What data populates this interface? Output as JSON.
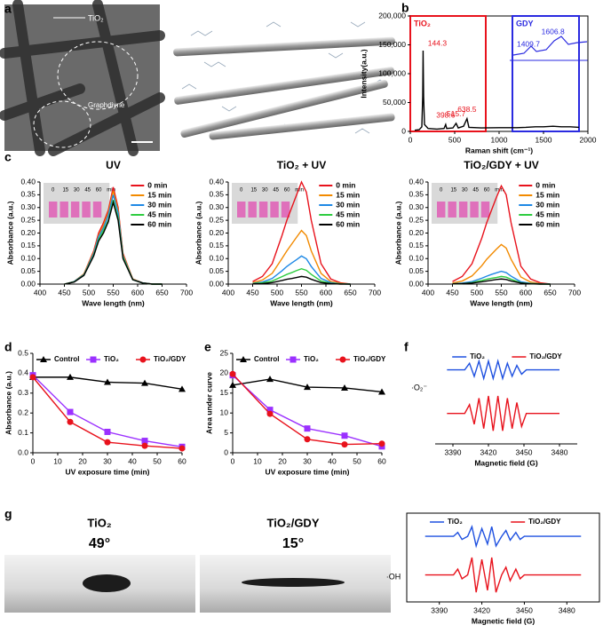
{
  "panel_labels": [
    "a",
    "b",
    "c",
    "d",
    "e",
    "f",
    "g"
  ],
  "figure_a": {
    "labels": [
      "TiO₂",
      "Graphdiyne"
    ]
  },
  "figure_g": {
    "samples": [
      {
        "name": "TiO₂",
        "angle": "49°"
      },
      {
        "name": "TiO₂/GDY",
        "angle": "15°"
      }
    ]
  },
  "chart_data": [
    {
      "type": "line",
      "xlabel": "Raman shift (cm⁻¹)",
      "ylabel": "Intensity(a.u.)",
      "x": [
        50,
        100,
        130,
        140,
        144.3,
        150,
        160,
        200,
        300,
        380,
        398.6,
        410,
        480,
        515.7,
        540,
        600,
        638.5,
        660,
        800,
        1000,
        1200,
        1300,
        1409.7,
        1500,
        1606.8,
        1700,
        1800,
        1900
      ],
      "series": [
        {
          "color": "#000000",
          "values": [
            2000,
            3000,
            8000,
            60000,
            140000,
            60000,
            12000,
            5000,
            4000,
            5000,
            12000,
            5000,
            6000,
            14000,
            6000,
            9000,
            22000,
            7000,
            6000,
            6500,
            6500,
            7000,
            8000,
            8000,
            9000,
            8000,
            8000,
            7000
          ]
        }
      ],
      "xlim": [
        0,
        2000
      ],
      "xticks": [
        0,
        500,
        1000,
        1500,
        2000
      ],
      "ylim": [
        0,
        200000
      ],
      "yticks": [
        0,
        {
          "value": 50000,
          "label": "50,000"
        },
        {
          "value": 100000,
          "label": "100,000"
        },
        {
          "value": 150000,
          "label": "150,000"
        },
        {
          "value": 200000,
          "label": "200,000"
        }
      ],
      "regions": [
        {
          "label": "TiO₂",
          "color": "#e8121c",
          "x": [
            0,
            850
          ]
        },
        {
          "label": "GDY",
          "color": "#2a2ae0",
          "x": [
            1150,
            1900
          ]
        }
      ],
      "peaks": [
        {
          "value": 144.3,
          "label": "144.3"
        },
        {
          "value": 398.6,
          "label": "398.6"
        },
        {
          "value": 515.7,
          "label": "515.7"
        },
        {
          "value": 638.5,
          "label": "638.5"
        },
        {
          "value": 1409.7,
          "label": "1409.7"
        },
        {
          "value": 1606.8,
          "label": "1606.8"
        }
      ]
    },
    {
      "type": "line",
      "title": "UV",
      "xlabel": "Wave length (nm)",
      "ylabel": "Absorbance (a.u.)",
      "legend": "right",
      "inset_labels": [
        "0",
        "15",
        "30",
        "45",
        "60",
        "min"
      ],
      "x": [
        450,
        470,
        490,
        510,
        520,
        530,
        540,
        550,
        560,
        570,
        590,
        610,
        630,
        650
      ],
      "series": [
        {
          "name": "0 min",
          "color": "#e8121c",
          "values": [
            0,
            0.01,
            0.04,
            0.13,
            0.2,
            0.24,
            0.29,
            0.38,
            0.3,
            0.12,
            0.02,
            0.005,
            0,
            0
          ]
        },
        {
          "name": "15 min",
          "color": "#f28a00",
          "values": [
            0,
            0.01,
            0.04,
            0.125,
            0.19,
            0.23,
            0.28,
            0.365,
            0.29,
            0.115,
            0.02,
            0.005,
            0,
            0
          ]
        },
        {
          "name": "30 min",
          "color": "#1e88e5",
          "values": [
            0,
            0.01,
            0.037,
            0.12,
            0.185,
            0.22,
            0.27,
            0.35,
            0.28,
            0.11,
            0.018,
            0.005,
            0,
            0
          ]
        },
        {
          "name": "45 min",
          "color": "#2ecc40",
          "values": [
            0,
            0.009,
            0.035,
            0.113,
            0.174,
            0.21,
            0.25,
            0.33,
            0.26,
            0.105,
            0.017,
            0.004,
            0,
            0
          ]
        },
        {
          "name": "60 min",
          "color": "#000000",
          "values": [
            0,
            0.008,
            0.034,
            0.11,
            0.168,
            0.2,
            0.245,
            0.32,
            0.25,
            0.1,
            0.017,
            0.004,
            0,
            0
          ]
        }
      ],
      "xlim": [
        400,
        700
      ],
      "xticks": [
        400,
        450,
        500,
        550,
        600,
        650,
        700
      ],
      "ylim": [
        0,
        0.4
      ],
      "yticks": [
        {
          "value": 0,
          "label": "0.00"
        },
        0.05,
        {
          "value": 0.1,
          "label": "0.10"
        },
        0.15,
        {
          "value": 0.2,
          "label": "0.20"
        },
        0.25,
        {
          "value": 0.3,
          "label": "0.30"
        },
        0.35,
        {
          "value": 0.4,
          "label": "0.40"
        }
      ]
    },
    {
      "type": "line",
      "title": "TiO₂ + UV",
      "xlabel": "Wave length (nm)",
      "ylabel": "Absorbance (a.u.)",
      "legend": "right",
      "inset_labels": [
        "0",
        "15",
        "30",
        "45",
        "60",
        "min"
      ],
      "x": [
        450,
        470,
        490,
        510,
        520,
        530,
        540,
        550,
        560,
        570,
        590,
        610,
        630,
        650
      ],
      "series": [
        {
          "name": "0 min",
          "color": "#e8121c",
          "values": [
            0.01,
            0.03,
            0.08,
            0.19,
            0.25,
            0.3,
            0.35,
            0.4,
            0.36,
            0.25,
            0.08,
            0.02,
            0.005,
            0
          ]
        },
        {
          "name": "15 min",
          "color": "#f28a00",
          "values": [
            0.005,
            0.016,
            0.042,
            0.1,
            0.13,
            0.157,
            0.184,
            0.21,
            0.19,
            0.13,
            0.042,
            0.01,
            0.003,
            0
          ]
        },
        {
          "name": "30 min",
          "color": "#1e88e5",
          "values": [
            0.003,
            0.008,
            0.022,
            0.052,
            0.069,
            0.083,
            0.096,
            0.11,
            0.099,
            0.069,
            0.022,
            0.006,
            0.001,
            0
          ]
        },
        {
          "name": "45 min",
          "color": "#2ecc40",
          "values": [
            0.002,
            0.005,
            0.012,
            0.029,
            0.038,
            0.045,
            0.053,
            0.06,
            0.054,
            0.038,
            0.012,
            0.003,
            0.001,
            0
          ]
        },
        {
          "name": "60 min",
          "color": "#000000",
          "values": [
            0.001,
            0.002,
            0.006,
            0.014,
            0.019,
            0.022,
            0.026,
            0.03,
            0.027,
            0.019,
            0.006,
            0.002,
            0,
            0
          ]
        }
      ],
      "xlim": [
        400,
        700
      ],
      "xticks": [
        400,
        450,
        500,
        550,
        600,
        650,
        700
      ],
      "ylim": [
        0,
        0.4
      ],
      "yticks": [
        {
          "value": 0,
          "label": "0.00"
        },
        0.05,
        {
          "value": 0.1,
          "label": "0.10"
        },
        0.15,
        {
          "value": 0.2,
          "label": "0.20"
        },
        0.25,
        {
          "value": 0.3,
          "label": "0.30"
        },
        0.35,
        {
          "value": 0.4,
          "label": "0.40"
        }
      ]
    },
    {
      "type": "line",
      "title": "TiO₂/GDY + UV",
      "xlabel": "Wave length (nm)",
      "ylabel": "Absorbance (a.u.)",
      "legend": "right",
      "inset_labels": [
        "0",
        "15",
        "30",
        "45",
        "60",
        "min"
      ],
      "x": [
        450,
        470,
        490,
        510,
        520,
        530,
        540,
        550,
        560,
        570,
        590,
        610,
        630,
        650
      ],
      "series": [
        {
          "name": "0 min",
          "color": "#e8121c",
          "values": [
            0.01,
            0.03,
            0.08,
            0.18,
            0.24,
            0.29,
            0.34,
            0.385,
            0.35,
            0.24,
            0.07,
            0.02,
            0.005,
            0
          ]
        },
        {
          "name": "15 min",
          "color": "#f28a00",
          "values": [
            0.004,
            0.012,
            0.032,
            0.072,
            0.097,
            0.117,
            0.137,
            0.155,
            0.141,
            0.097,
            0.028,
            0.008,
            0.002,
            0
          ]
        },
        {
          "name": "30 min",
          "color": "#1e88e5",
          "values": [
            0.001,
            0.004,
            0.01,
            0.023,
            0.031,
            0.038,
            0.044,
            0.05,
            0.045,
            0.031,
            0.009,
            0.003,
            0.001,
            0
          ]
        },
        {
          "name": "45 min",
          "color": "#2ecc40",
          "values": [
            0.001,
            0.002,
            0.006,
            0.014,
            0.019,
            0.023,
            0.026,
            0.03,
            0.027,
            0.019,
            0.005,
            0.002,
            0,
            0
          ]
        },
        {
          "name": "60 min",
          "color": "#000000",
          "values": [
            0.001,
            0.002,
            0.004,
            0.009,
            0.012,
            0.015,
            0.018,
            0.02,
            0.018,
            0.012,
            0.004,
            0.001,
            0,
            0
          ]
        }
      ],
      "xlim": [
        400,
        700
      ],
      "xticks": [
        400,
        450,
        500,
        550,
        600,
        650,
        700
      ],
      "ylim": [
        0,
        0.4
      ],
      "yticks": [
        {
          "value": 0,
          "label": "0.00"
        },
        0.05,
        {
          "value": 0.1,
          "label": "0.10"
        },
        0.15,
        {
          "value": 0.2,
          "label": "0.20"
        },
        0.25,
        {
          "value": 0.3,
          "label": "0.30"
        },
        0.35,
        {
          "value": 0.4,
          "label": "0.40"
        }
      ]
    },
    {
      "type": "line",
      "xlabel": "UV exposure time (min)",
      "ylabel": "Absorbance (a.u.)",
      "legend": "top",
      "x": [
        0,
        15,
        30,
        45,
        60
      ],
      "series": [
        {
          "name": "Control",
          "color": "#000000",
          "marker": "triangle",
          "values": [
            0.38,
            0.38,
            0.355,
            0.35,
            0.32
          ]
        },
        {
          "name": "TiO₂",
          "color": "#9b30ff",
          "marker": "square",
          "values": [
            0.39,
            0.205,
            0.105,
            0.06,
            0.03
          ]
        },
        {
          "name": "TiO₂/GDY",
          "color": "#e8121c",
          "marker": "circle",
          "values": [
            0.38,
            0.155,
            0.053,
            0.035,
            0.022
          ]
        }
      ],
      "xlim": [
        0,
        60
      ],
      "xticks": [
        0,
        10,
        20,
        30,
        40,
        50,
        60
      ],
      "ylim": [
        0,
        0.5
      ],
      "yticks": [
        {
          "value": 0,
          "label": "0.0"
        },
        0.1,
        0.2,
        0.3,
        0.4,
        0.5
      ]
    },
    {
      "type": "line",
      "xlabel": "UV exposure time (min)",
      "ylabel": "Area under curve",
      "legend": "top",
      "x": [
        0,
        15,
        30,
        45,
        60
      ],
      "series": [
        {
          "name": "Control",
          "color": "#000000",
          "marker": "triangle",
          "values": [
            17,
            18.5,
            16.5,
            16.3,
            15.3
          ]
        },
        {
          "name": "TiO₂",
          "color": "#9b30ff",
          "marker": "square",
          "values": [
            19.5,
            10.8,
            6.1,
            4.3,
            1.6
          ]
        },
        {
          "name": "TiO₂/GDY",
          "color": "#e8121c",
          "marker": "circle",
          "values": [
            19.8,
            9.8,
            3.4,
            2.1,
            2.3
          ]
        }
      ],
      "xlim": [
        0,
        60
      ],
      "xticks": [
        0,
        10,
        20,
        30,
        40,
        50,
        60
      ],
      "ylim": [
        0,
        25
      ],
      "yticks": [
        0,
        5,
        10,
        15,
        20,
        25
      ]
    },
    {
      "type": "line",
      "xlabel": "Magnetic field (G)",
      "side_label": "·O₂⁻",
      "legend": "top",
      "x": [
        3385,
        3400,
        3404,
        3408,
        3412,
        3416,
        3420,
        3424,
        3428,
        3432,
        3436,
        3440,
        3444,
        3448,
        3452,
        3460,
        3480
      ],
      "series": [
        {
          "name": "TiO₂",
          "color": "#1e50e0",
          "values": [
            1,
            1,
            1.15,
            0.85,
            1.2,
            0.8,
            1.2,
            0.8,
            1.2,
            0.8,
            1.15,
            0.85,
            1.1,
            0.9,
            1,
            1,
            1
          ]
        },
        {
          "name": "TiO₂/GDY",
          "color": "#e8121c",
          "values": [
            0,
            0,
            0.2,
            -0.25,
            0.35,
            -0.35,
            0.4,
            -0.4,
            0.4,
            -0.4,
            0.35,
            -0.35,
            0.25,
            -0.3,
            0,
            0,
            0
          ]
        }
      ],
      "xlim": [
        3375,
        3495
      ],
      "xticks": [
        3390,
        3420,
        3450,
        3480
      ],
      "ylim": [
        -0.7,
        1.5
      ]
    },
    {
      "type": "line",
      "xlabel": "Magnetic field (G)",
      "side_label": "·OH",
      "legend": "top",
      "x": [
        3380,
        3400,
        3403,
        3406,
        3410,
        3413,
        3416,
        3420,
        3424,
        3427,
        3430,
        3434,
        3437,
        3440,
        3444,
        3447,
        3450,
        3460,
        3490
      ],
      "series": [
        {
          "name": "TiO₂",
          "color": "#1e50e0",
          "values": [
            1,
            1,
            1.1,
            0.92,
            1,
            1.25,
            0.75,
            1.2,
            0.8,
            1.25,
            0.75,
            1,
            1.15,
            0.9,
            1.1,
            0.92,
            1,
            1,
            1
          ]
        },
        {
          "name": "TiO₂/GDY",
          "color": "#e8121c",
          "values": [
            0,
            0,
            0.15,
            -0.1,
            0,
            0.45,
            -0.45,
            0.4,
            -0.4,
            0.45,
            -0.45,
            0,
            0.2,
            -0.15,
            0.15,
            -0.1,
            0,
            0,
            0
          ]
        }
      ],
      "xlim": [
        3367,
        3503
      ],
      "xticks": [
        3390,
        3420,
        3450,
        3480
      ],
      "ylim": [
        -0.7,
        1.6
      ]
    }
  ]
}
